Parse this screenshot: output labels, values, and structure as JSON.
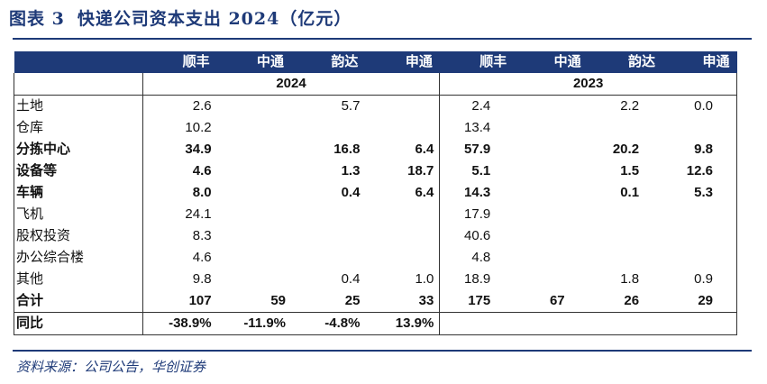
{
  "title": {
    "figure": "图表 3",
    "text": "快递公司资本支出 2024（亿元）"
  },
  "table": {
    "companies": [
      "顺丰",
      "中通",
      "韵达",
      "申通",
      "顺丰",
      "中通",
      "韵达",
      "申通"
    ],
    "years": [
      "2024",
      "2023"
    ],
    "rows": [
      {
        "label": "土地",
        "bold": false,
        "values": [
          "2.6",
          "",
          "5.7",
          "",
          "2.4",
          "",
          "2.2",
          "0.0"
        ]
      },
      {
        "label": "仓库",
        "bold": false,
        "values": [
          "10.2",
          "",
          "",
          "",
          "13.4",
          "",
          "",
          ""
        ]
      },
      {
        "label": "分拣中心",
        "bold": true,
        "values": [
          "34.9",
          "",
          "16.8",
          "6.4",
          "57.9",
          "",
          "20.2",
          "9.8"
        ]
      },
      {
        "label": "设备等",
        "bold": true,
        "values": [
          "4.6",
          "",
          "1.3",
          "18.7",
          "5.1",
          "",
          "1.5",
          "12.6"
        ]
      },
      {
        "label": "车辆",
        "bold": true,
        "values": [
          "8.0",
          "",
          "0.4",
          "6.4",
          "14.3",
          "",
          "0.1",
          "5.3"
        ]
      },
      {
        "label": "飞机",
        "bold": false,
        "values": [
          "24.1",
          "",
          "",
          "",
          "17.9",
          "",
          "",
          ""
        ]
      },
      {
        "label": "股权投资",
        "bold": false,
        "values": [
          "8.3",
          "",
          "",
          "",
          "40.6",
          "",
          "",
          ""
        ]
      },
      {
        "label": "办公综合楼",
        "bold": false,
        "values": [
          "4.6",
          "",
          "",
          "",
          "4.8",
          "",
          "",
          ""
        ]
      },
      {
        "label": "其他",
        "bold": false,
        "values": [
          "9.8",
          "",
          "0.4",
          "1.0",
          "18.9",
          "",
          "1.8",
          "0.9"
        ]
      }
    ],
    "total": {
      "label": "合计",
      "values": [
        "107",
        "59",
        "25",
        "33",
        "175",
        "67",
        "26",
        "29"
      ]
    },
    "yoy": {
      "label": "同比",
      "values": [
        "-38.9%",
        "-11.9%",
        "-4.8%",
        "13.9%"
      ]
    }
  },
  "source": "资料来源：公司公告，华创证券",
  "colors": {
    "header_bg": "#1e3a78",
    "accent": "#1e3a78"
  }
}
